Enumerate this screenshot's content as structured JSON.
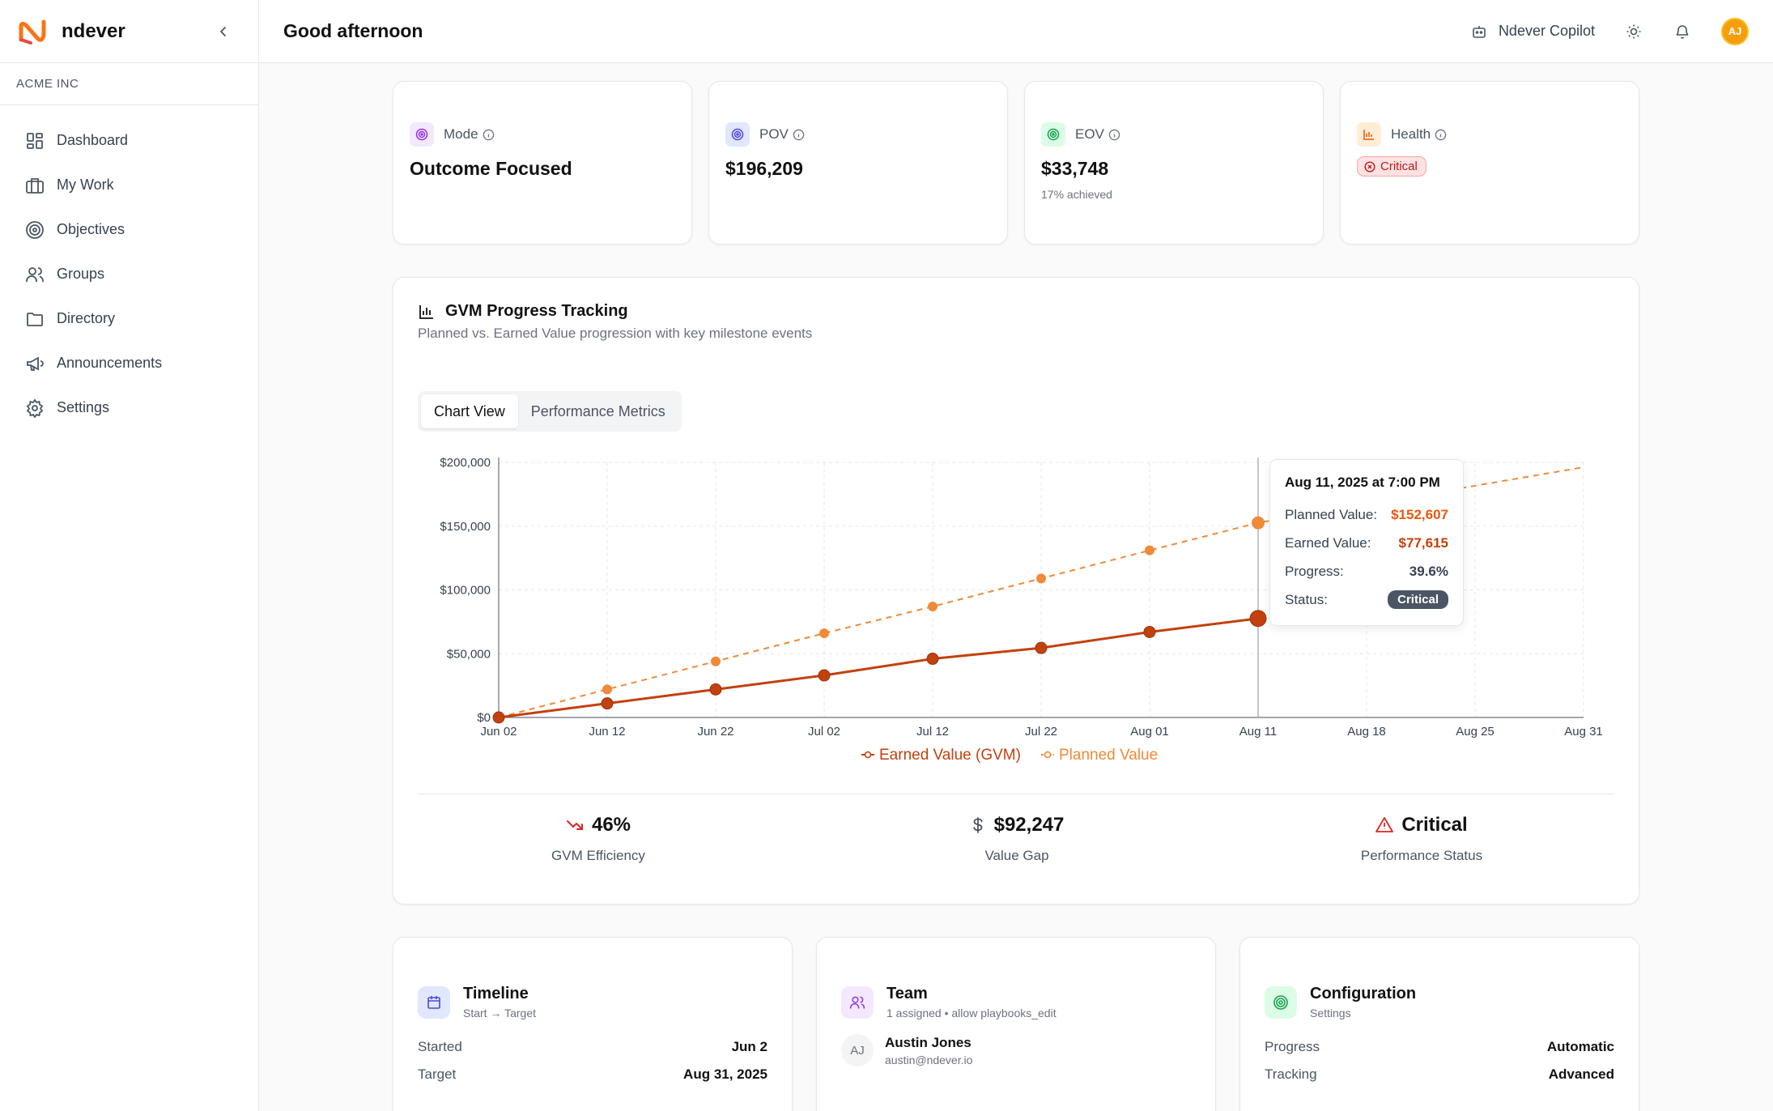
{
  "app": {
    "name": "ndever",
    "org": "ACME INC",
    "greeting": "Good afternoon",
    "copilot_label": "Ndever Copilot",
    "user_initials": "AJ",
    "accent": "#f97316"
  },
  "sidebar": {
    "items": [
      {
        "label": "Dashboard",
        "icon": "dashboard-icon"
      },
      {
        "label": "My Work",
        "icon": "briefcase-icon"
      },
      {
        "label": "Objectives",
        "icon": "target-icon"
      },
      {
        "label": "Groups",
        "icon": "users-icon"
      },
      {
        "label": "Directory",
        "icon": "folder-icon"
      },
      {
        "label": "Announcements",
        "icon": "megaphone-icon"
      },
      {
        "label": "Settings",
        "icon": "gear-icon"
      }
    ]
  },
  "stats": {
    "mode": {
      "label": "Mode",
      "value": "Outcome Focused"
    },
    "pov": {
      "label": "POV",
      "value": "$196,209"
    },
    "eov": {
      "label": "EOV",
      "value": "$33,748",
      "sub": "17% achieved"
    },
    "health": {
      "label": "Health",
      "value": "Critical"
    }
  },
  "chart_card": {
    "title": "GVM Progress Tracking",
    "subtitle": "Planned vs. Earned Value progression with key milestone events",
    "tabs": [
      {
        "label": "Chart View",
        "active": true
      },
      {
        "label": "Performance Metrics",
        "active": false
      }
    ]
  },
  "chart_data": {
    "type": "line",
    "x": [
      "Jun 02",
      "Jun 12",
      "Jun 22",
      "Jul 02",
      "Jul 12",
      "Jul 22",
      "Aug 01",
      "Aug 11",
      "Aug 18",
      "Aug 25",
      "Aug 31"
    ],
    "series": [
      {
        "name": "Earned Value (GVM)",
        "color": "#c2410c",
        "style": "solid",
        "values": [
          0,
          11000,
          22000,
          33000,
          46000,
          54500,
          67000,
          77615,
          null,
          null,
          null
        ]
      },
      {
        "name": "Planned Value",
        "color": "#f08a38",
        "style": "dashed",
        "values": [
          0,
          22000,
          44000,
          66000,
          87000,
          109000,
          131000,
          152607,
          null,
          null,
          196209
        ]
      }
    ],
    "y_ticks": [
      "$0",
      "$50,000",
      "$100,000",
      "$150,000",
      "$200,000"
    ],
    "ylim": [
      0,
      200000
    ],
    "grid": true,
    "legend": "bottom-center",
    "tooltip": {
      "title": "Aug 11, 2025 at 7:00 PM",
      "planned_label": "Planned Value:",
      "planned_value": "$152,607",
      "earned_label": "Earned Value:",
      "earned_value": "$77,615",
      "progress_label": "Progress:",
      "progress_value": "39.6%",
      "status_label": "Status:",
      "status_value": "Critical"
    }
  },
  "metrics": [
    {
      "value": "46%",
      "label": "GVM Efficiency",
      "icon": "trending-down-icon"
    },
    {
      "value": "$92,247",
      "label": "Value Gap",
      "icon": "dollar-icon"
    },
    {
      "value": "Critical",
      "label": "Performance Status",
      "icon": "warning-icon"
    }
  ],
  "timeline": {
    "title": "Timeline",
    "subtitle": "Start → Target",
    "rows": [
      {
        "key": "Started",
        "value": "Jun 2"
      },
      {
        "key": "Target",
        "value": "Aug 31, 2025"
      }
    ]
  },
  "team": {
    "title": "Team",
    "subtitle": "1 assigned • allow playbooks_edit",
    "member": {
      "initials": "AJ",
      "name": "Austin Jones",
      "email": "austin@ndever.io"
    }
  },
  "configuration": {
    "title": "Configuration",
    "subtitle": "Settings",
    "rows": [
      {
        "key": "Progress",
        "value": "Automatic"
      },
      {
        "key": "Tracking",
        "value": "Advanced"
      }
    ]
  }
}
